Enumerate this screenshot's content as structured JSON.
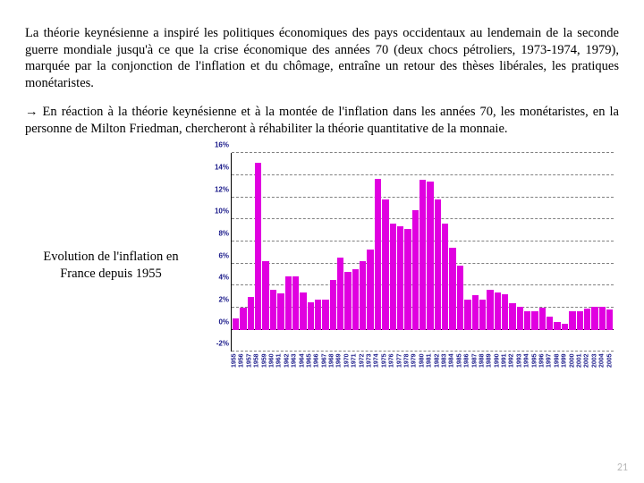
{
  "paragraph1": "La théorie keynésienne a inspiré les politiques économiques des pays occidentaux au lendemain de la seconde guerre mondiale jusqu'à ce que la crise économique des années 70 (deux chocs pétroliers, 1973-1974, 1979), marquée par la conjonction de l'inflation et du chômage, entraîne un retour des thèses libérales, les pratiques monétaristes.",
  "paragraph2": "→  En réaction à la théorie keynésienne et à la montée de l'inflation dans les années 70, les monétaristes, en la personne de Milton Friedman, chercheront à réhabiliter la théorie quantitative de la monnaie.",
  "caption": "Evolution de l'inflation en France depuis 1955",
  "page_number": "21",
  "chart": {
    "type": "bar",
    "bar_color": "#e000e0",
    "grid_color": "#808080",
    "axis_color": "#000000",
    "label_color": "#1a1a8a",
    "background_color": "#ffffff",
    "ylim": [
      -2,
      16
    ],
    "ytick_labels": [
      "-2%",
      "0%",
      "2%",
      "4%",
      "6%",
      "8%",
      "10%",
      "12%",
      "14%",
      "16%"
    ],
    "ytick_values": [
      -2,
      0,
      2,
      4,
      6,
      8,
      10,
      12,
      14,
      16
    ],
    "years": [
      1955,
      1956,
      1957,
      1958,
      1959,
      1960,
      1961,
      1962,
      1963,
      1964,
      1965,
      1966,
      1967,
      1968,
      1969,
      1970,
      1971,
      1972,
      1973,
      1974,
      1975,
      1976,
      1977,
      1978,
      1979,
      1980,
      1981,
      1982,
      1983,
      1984,
      1985,
      1986,
      1987,
      1988,
      1989,
      1990,
      1991,
      1992,
      1993,
      1994,
      1995,
      1996,
      1997,
      1998,
      1999,
      2000,
      2001,
      2002,
      2003,
      2004,
      2005
    ],
    "values": [
      1.0,
      2.0,
      3.0,
      15.1,
      6.2,
      3.6,
      3.3,
      4.8,
      4.8,
      3.4,
      2.5,
      2.7,
      2.7,
      4.5,
      6.5,
      5.2,
      5.5,
      6.2,
      7.3,
      13.7,
      11.8,
      9.6,
      9.4,
      9.1,
      10.8,
      13.6,
      13.4,
      11.8,
      9.6,
      7.4,
      5.8,
      2.7,
      3.1,
      2.7,
      3.6,
      3.4,
      3.2,
      2.4,
      2.1,
      1.7,
      1.7,
      2.0,
      1.2,
      0.7,
      0.5,
      1.7,
      1.7,
      1.9,
      2.1,
      2.1,
      1.8
    ]
  }
}
